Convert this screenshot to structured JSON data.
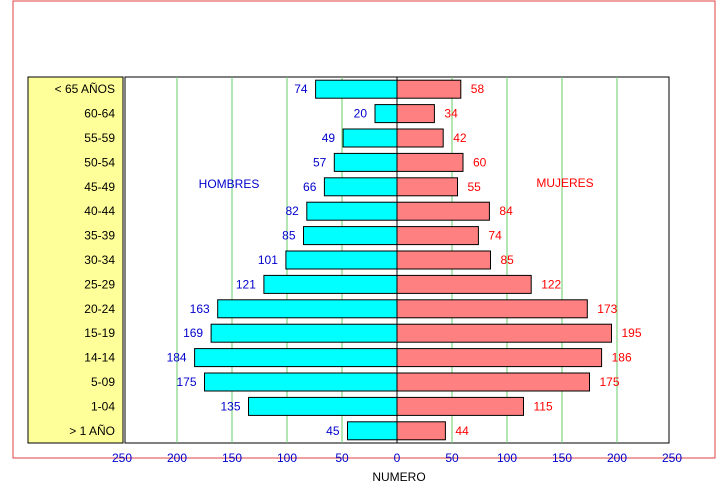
{
  "colors": {
    "border": "#e04040",
    "label_panel": "#ffff99",
    "men_bar": "#00ffff",
    "women_bar": "#ff8080",
    "men_text": "#0000cc",
    "women_text": "#ff0000",
    "grid": "#66cc66"
  },
  "chart_data": {
    "type": "bar",
    "orientation": "horizontal",
    "subtype": "population-pyramid",
    "categories": [
      "< 65 AÑOS",
      "60-64",
      "55-59",
      "50-54",
      "45-49",
      "40-44",
      "35-39",
      "30-34",
      "25-29",
      "20-24",
      "15-19",
      "14-14",
      "5-09",
      "1-04",
      "> 1 AÑO"
    ],
    "series": [
      {
        "name": "HOMBRES",
        "side": "left",
        "values": [
          74,
          20,
          49,
          57,
          66,
          82,
          85,
          101,
          121,
          163,
          169,
          184,
          175,
          135,
          45
        ]
      },
      {
        "name": "MUJERES",
        "side": "right",
        "values": [
          58,
          34,
          42,
          60,
          55,
          84,
          74,
          85,
          122,
          173,
          195,
          186,
          175,
          115,
          44
        ]
      }
    ],
    "xlabel": "NUMERO",
    "xlim": [
      -250,
      250
    ],
    "x_ticks": [
      "250",
      "200",
      "150",
      "100",
      "50",
      "0",
      "50",
      "100",
      "150",
      "200",
      "250"
    ],
    "grid": true
  }
}
